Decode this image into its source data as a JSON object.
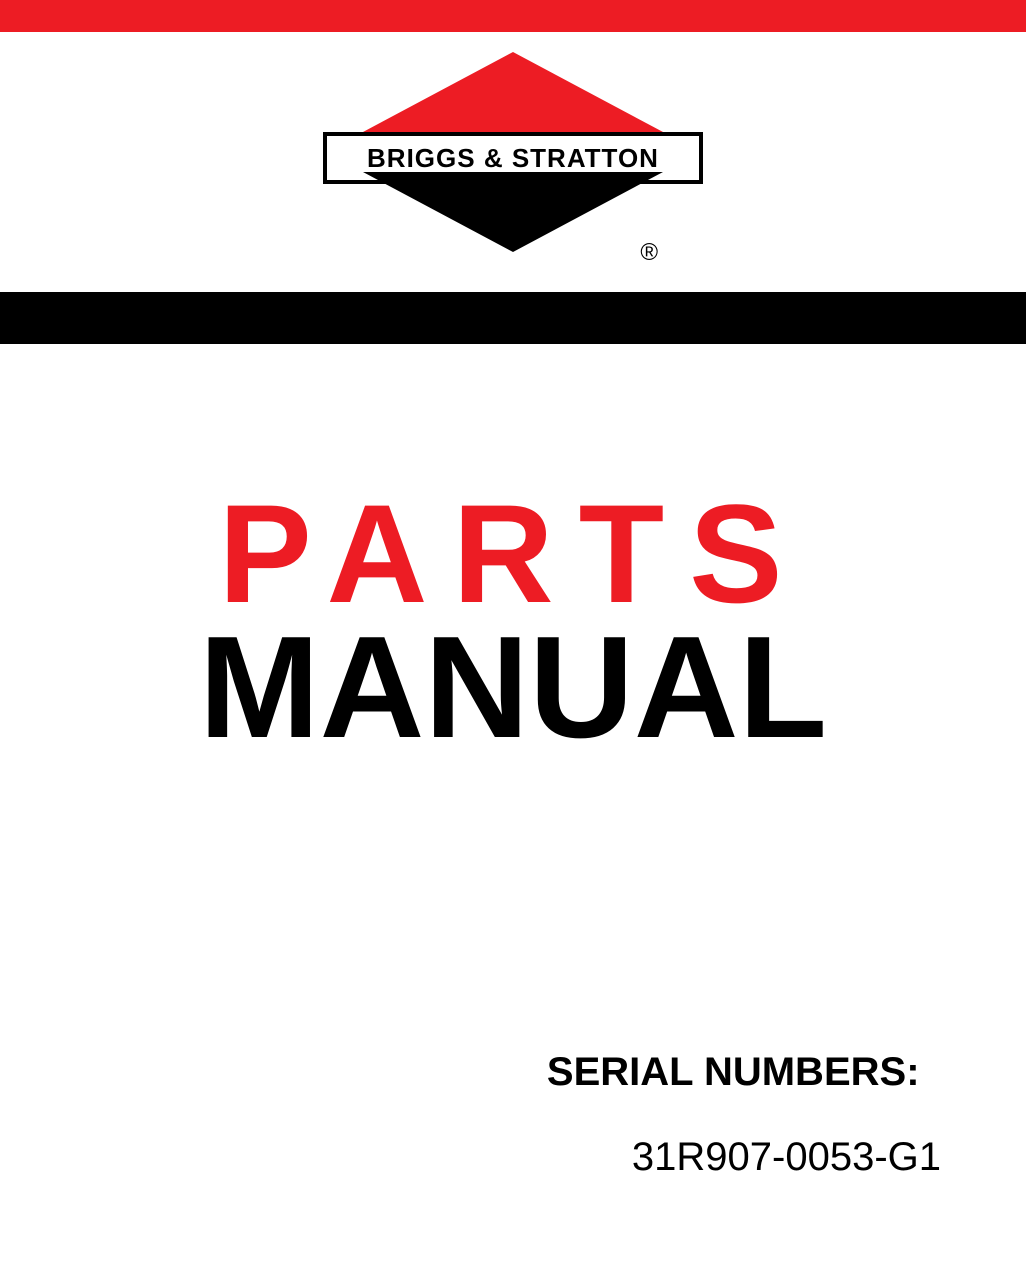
{
  "colors": {
    "red": "#ed1c24",
    "black": "#000000",
    "white": "#ffffff"
  },
  "logo": {
    "brand_name": "BRIGGS & STRATTON",
    "registered_symbol": "®",
    "diamond_top_color": "#ed1c24",
    "diamond_bottom_color": "#000000",
    "band_border_color": "#000000",
    "band_bg_color": "#ffffff",
    "text_fontsize": 26
  },
  "top_bar": {
    "color": "#ed1c24",
    "height": 32
  },
  "black_bar": {
    "color": "#000000",
    "height": 52
  },
  "title": {
    "line1": "PARTS",
    "line1_color": "#ed1c24",
    "line1_fontsize": 140,
    "line1_letterspacing": 25,
    "line2": "MANUAL",
    "line2_color": "#000000",
    "line2_fontsize": 145
  },
  "serial": {
    "label": "SERIAL NUMBERS:",
    "label_fontsize": 40,
    "value": "31R907-0053-G1",
    "value_fontsize": 40
  }
}
